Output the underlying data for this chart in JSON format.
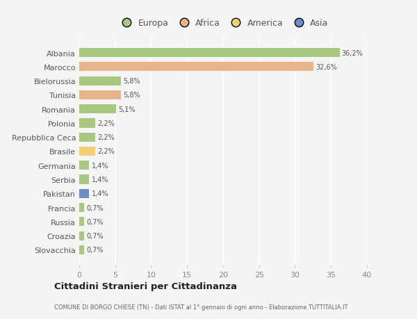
{
  "categories": [
    "Albania",
    "Marocco",
    "Bielorussia",
    "Tunisia",
    "Romania",
    "Polonia",
    "Repubblica Ceca",
    "Brasile",
    "Germania",
    "Serbia",
    "Pakistan",
    "Francia",
    "Russia",
    "Croazia",
    "Slovacchia"
  ],
  "values": [
    36.2,
    32.6,
    5.8,
    5.8,
    5.1,
    2.2,
    2.2,
    2.2,
    1.4,
    1.4,
    1.4,
    0.7,
    0.7,
    0.7,
    0.7
  ],
  "labels": [
    "36,2%",
    "32,6%",
    "5,8%",
    "5,8%",
    "5,1%",
    "2,2%",
    "2,2%",
    "2,2%",
    "1,4%",
    "1,4%",
    "1,4%",
    "0,7%",
    "0,7%",
    "0,7%",
    "0,7%"
  ],
  "colors": [
    "#a8c882",
    "#e8b48a",
    "#a8c882",
    "#e8b48a",
    "#a8c882",
    "#a8c882",
    "#a8c882",
    "#f0d070",
    "#a8c882",
    "#a8c882",
    "#6a8fc8",
    "#a8c882",
    "#a8c882",
    "#a8c882",
    "#a8c882"
  ],
  "legend_labels": [
    "Europa",
    "Africa",
    "America",
    "Asia"
  ],
  "legend_colors": [
    "#a8c882",
    "#e8b48a",
    "#f0d070",
    "#6a8fc8"
  ],
  "title": "Cittadini Stranieri per Cittadinanza",
  "subtitle": "COMUNE DI BORGO CHIESE (TN) - Dati ISTAT al 1° gennaio di ogni anno - Elaborazione TUTTITALIA.IT",
  "xlim": [
    0,
    40
  ],
  "xticks": [
    0,
    5,
    10,
    15,
    20,
    25,
    30,
    35,
    40
  ],
  "bg_color": "#f5f5f5",
  "grid_color": "#ffffff",
  "bar_height": 0.65
}
